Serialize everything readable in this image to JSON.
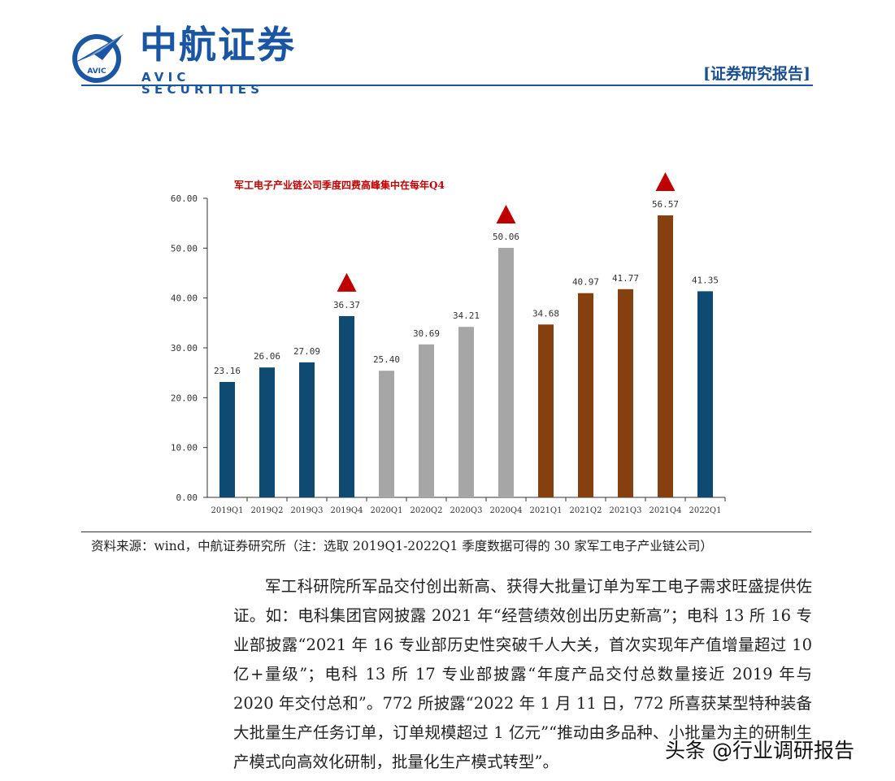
{
  "header": {
    "logo_cn": "中航证券",
    "logo_en": "AVIC SECURITIES",
    "logo_badge": "AVIC",
    "report_label": "[证券研究报告]",
    "brand_color": "#1a56a3"
  },
  "chart_data": {
    "type": "bar",
    "annotation": "军工电子产业链公司季度四费高峰集中在每年Q4",
    "categories": [
      "2019Q1",
      "2019Q2",
      "2019Q3",
      "2019Q4",
      "2020Q1",
      "2020Q2",
      "2020Q3",
      "2020Q4",
      "2021Q1",
      "2021Q2",
      "2021Q3",
      "2021Q4",
      "2022Q1"
    ],
    "values": [
      23.16,
      26.06,
      27.09,
      36.37,
      25.4,
      30.69,
      34.21,
      50.06,
      34.68,
      40.97,
      41.77,
      56.57,
      41.35
    ],
    "value_labels": [
      "23.16",
      "26.06",
      "27.09",
      "36.37",
      "25.40",
      "30.69",
      "34.21",
      "50.06",
      "34.68",
      "40.97",
      "41.77",
      "56.57",
      "41.35"
    ],
    "bar_colors": [
      "#0e4a72",
      "#0e4a72",
      "#0e4a72",
      "#0e4a72",
      "#a6a6a6",
      "#a6a6a6",
      "#a6a6a6",
      "#a6a6a6",
      "#86400f",
      "#86400f",
      "#86400f",
      "#86400f",
      "#0e4a72"
    ],
    "y_ticks": [
      "0.00",
      "10.00",
      "20.00",
      "30.00",
      "40.00",
      "50.00",
      "60.00"
    ],
    "ylim": [
      0,
      60
    ],
    "peak_markers": [
      "2019Q4",
      "2020Q4",
      "2021Q4"
    ],
    "marker_color": "#c00000",
    "annotation_color": "#c00000",
    "grid": false
  },
  "source": "资料来源：wind，中航证券研究所（注：选取 2019Q1-2022Q1 季度数据可得的 30 家军工电子产业链公司）",
  "body": "军工科研院所军品交付创出新高、获得大批量订单为军工电子需求旺盛提供佐证。如：电科集团官网披露 2021 年“经营绩效创出历史新高”；电科 13 所 16 专业部披露“2021 年 16 专业部历史性突破千人大关，首次实现年产值增量超过 10 亿+量级”；电科 13 所 17 专业部披露“年度产品交付总数量接近 2019 年与 2020 年交付总和”。772 所披露“2022 年 1 月 11 日，772 所喜获某型特种装备大批量生产任务订单，订单规模超过 1 亿元”“推动由多品种、小批量为主的研制生产模式向高效化研制，批量化生产模式转型”。",
  "watermark": "头条 @行业调研报告"
}
